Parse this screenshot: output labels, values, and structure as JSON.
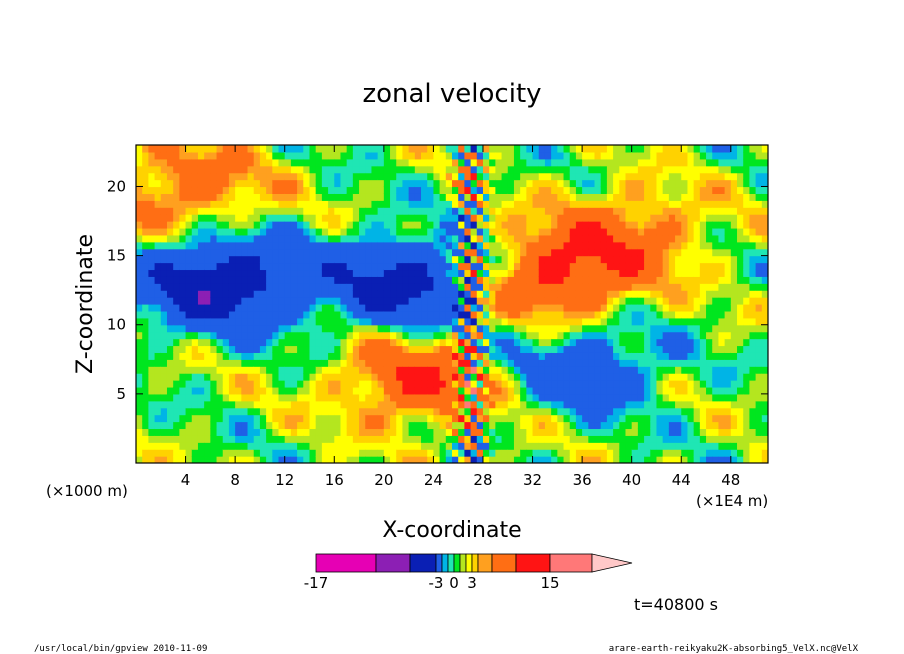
{
  "chart_data": {
    "type": "heatmap",
    "title": "zonal velocity",
    "xlabel": "X-coordinate",
    "ylabel": "Z-coordinate",
    "x_unit": "(×1E4 m)",
    "y_unit": "(×1000 m)",
    "x_ticks": [
      "4",
      "8",
      "12",
      "16",
      "20",
      "24",
      "28",
      "32",
      "36",
      "40",
      "44",
      "48"
    ],
    "x_tick_values": [
      4,
      8,
      12,
      16,
      20,
      24,
      28,
      32,
      36,
      40,
      44,
      48
    ],
    "y_ticks": [
      "5",
      "10",
      "15",
      "20"
    ],
    "y_tick_values": [
      5,
      10,
      15,
      20
    ],
    "xlim": [
      0,
      51
    ],
    "ylim": [
      0,
      23
    ],
    "colorbar": {
      "levels": [
        -17,
        -13,
        -8,
        -3,
        -2,
        -1,
        0,
        1,
        2,
        3,
        4,
        8,
        12,
        15
      ],
      "labels": [
        "-17",
        "-3",
        "0",
        "3",
        "15"
      ],
      "label_values": [
        -17,
        -3,
        0,
        3,
        15
      ],
      "colors": [
        "#e600b4",
        "#8c1fb4",
        "#0a1fb4",
        "#1f5fe6",
        "#00b4e6",
        "#1fe6b4",
        "#00e61f",
        "#b4e61f",
        "#ffff00",
        "#ffd200",
        "#ffa01f",
        "#ff6e14",
        "#ff1414",
        "#ff7878",
        "#ffc8c8"
      ]
    },
    "features": [
      {
        "name": "negative core left",
        "x": 7,
        "z": 13,
        "value": -12
      },
      {
        "name": "negative core center",
        "x": 22,
        "z": 13,
        "value": -10
      },
      {
        "name": "positive jet right",
        "x": 34,
        "z": 13.5,
        "value": 9
      },
      {
        "name": "positive lobe lower center",
        "x": 23,
        "z": 6,
        "value": 8
      },
      {
        "name": "negative lower right",
        "x": 36,
        "z": 7,
        "value": -6
      },
      {
        "name": "positive upper left",
        "x": 4,
        "z": 20,
        "value": 6
      },
      {
        "name": "positive upper right",
        "x": 40,
        "z": 17,
        "value": 5
      }
    ],
    "time": "t=40800 s"
  },
  "footer": {
    "left": "/usr/local/bin/gpview   2010-11-09",
    "right": "arare-earth-reikyaku2K-absorbing5_VelX.nc@VelX"
  }
}
